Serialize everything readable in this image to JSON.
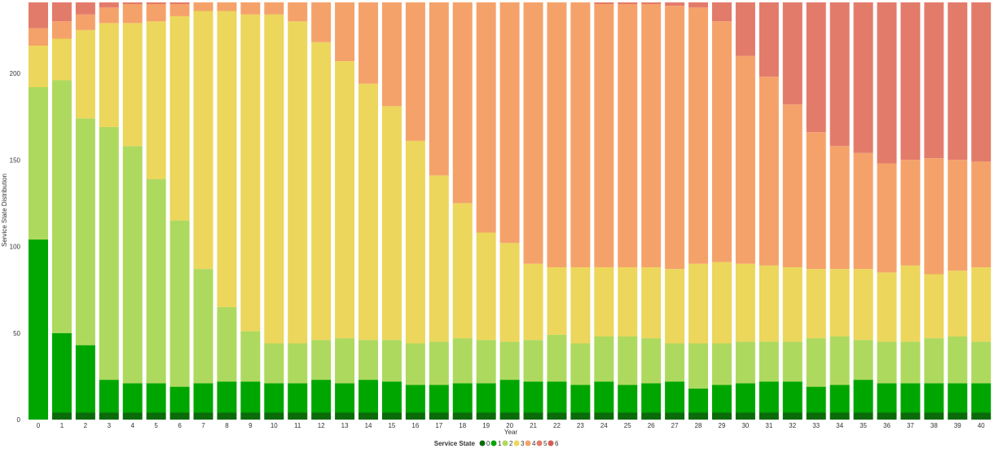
{
  "chart_data": {
    "type": "bar",
    "stacked": true,
    "xlabel": "Year",
    "ylabel": "Service State Distribution",
    "ylim": [
      0,
      241
    ],
    "yticks": [
      0,
      50,
      100,
      150,
      200
    ],
    "grid": false,
    "legend": {
      "title": "Service State",
      "placement": "bottom"
    },
    "categories": [
      "0",
      "1",
      "2",
      "3",
      "4",
      "5",
      "6",
      "7",
      "8",
      "9",
      "10",
      "11",
      "12",
      "13",
      "14",
      "15",
      "16",
      "17",
      "18",
      "19",
      "20",
      "21",
      "22",
      "23",
      "24",
      "25",
      "26",
      "27",
      "28",
      "29",
      "30",
      "31",
      "32",
      "33",
      "34",
      "35",
      "36",
      "37",
      "38",
      "39",
      "40"
    ],
    "series": [
      {
        "name": "0",
        "color": "#0b6b0b",
        "values": [
          0,
          4,
          4,
          4,
          4,
          4,
          4,
          4,
          4,
          4,
          4,
          4,
          4,
          4,
          4,
          4,
          4,
          4,
          4,
          4,
          4,
          4,
          4,
          4,
          4,
          4,
          4,
          4,
          4,
          4,
          4,
          4,
          4,
          4,
          4,
          4,
          4,
          4,
          4,
          4,
          4
        ]
      },
      {
        "name": "1",
        "color": "#00a600",
        "values": [
          104,
          46,
          39,
          19,
          17,
          17,
          15,
          17,
          18,
          18,
          17,
          17,
          19,
          17,
          19,
          18,
          16,
          16,
          17,
          17,
          19,
          18,
          18,
          16,
          18,
          16,
          17,
          18,
          14,
          16,
          17,
          18,
          18,
          15,
          16,
          19,
          17,
          17,
          17,
          17,
          17
        ]
      },
      {
        "name": "2",
        "color": "#aed95f",
        "values": [
          88,
          146,
          131,
          146,
          137,
          118,
          96,
          66,
          43,
          29,
          23,
          23,
          23,
          26,
          23,
          24,
          24,
          25,
          26,
          25,
          22,
          24,
          27,
          24,
          26,
          28,
          26,
          22,
          26,
          24,
          24,
          23,
          23,
          28,
          28,
          23,
          24,
          24,
          26,
          27,
          24
        ]
      },
      {
        "name": "3",
        "color": "#ecd65b",
        "values": [
          24,
          24,
          51,
          60,
          71,
          91,
          118,
          149,
          171,
          183,
          190,
          186,
          172,
          160,
          148,
          135,
          117,
          96,
          78,
          62,
          57,
          44,
          39,
          44,
          40,
          40,
          41,
          43,
          46,
          47,
          45,
          44,
          43,
          40,
          39,
          41,
          40,
          44,
          37,
          38,
          43
        ]
      },
      {
        "name": "4",
        "color": "#f5a26a",
        "values": [
          10,
          10,
          9,
          9,
          11,
          10,
          7,
          5,
          5,
          7,
          7,
          11,
          23,
          34,
          47,
          60,
          80,
          100,
          116,
          133,
          139,
          151,
          153,
          153,
          152,
          152,
          152,
          152,
          148,
          139,
          120,
          109,
          94,
          79,
          71,
          67,
          63,
          61,
          67,
          64,
          61
        ]
      },
      {
        "name": "5",
        "color": "#e37b6a",
        "values": [
          15,
          11,
          7,
          3,
          1,
          1,
          1,
          0,
          0,
          0,
          0,
          0,
          0,
          0,
          0,
          0,
          0,
          0,
          0,
          0,
          0,
          0,
          0,
          0,
          1,
          1,
          1,
          2,
          3,
          11,
          31,
          43,
          59,
          75,
          83,
          87,
          93,
          91,
          90,
          91,
          92
        ]
      },
      {
        "name": "6",
        "color": "#d65a52",
        "values": [
          0,
          0,
          0,
          0,
          0,
          0,
          0,
          0,
          0,
          0,
          0,
          0,
          0,
          0,
          0,
          0,
          0,
          0,
          0,
          0,
          0,
          0,
          0,
          0,
          0,
          0,
          0,
          0,
          0,
          0,
          0,
          0,
          0,
          0,
          0,
          0,
          0,
          0,
          0,
          0,
          0
        ]
      }
    ]
  }
}
